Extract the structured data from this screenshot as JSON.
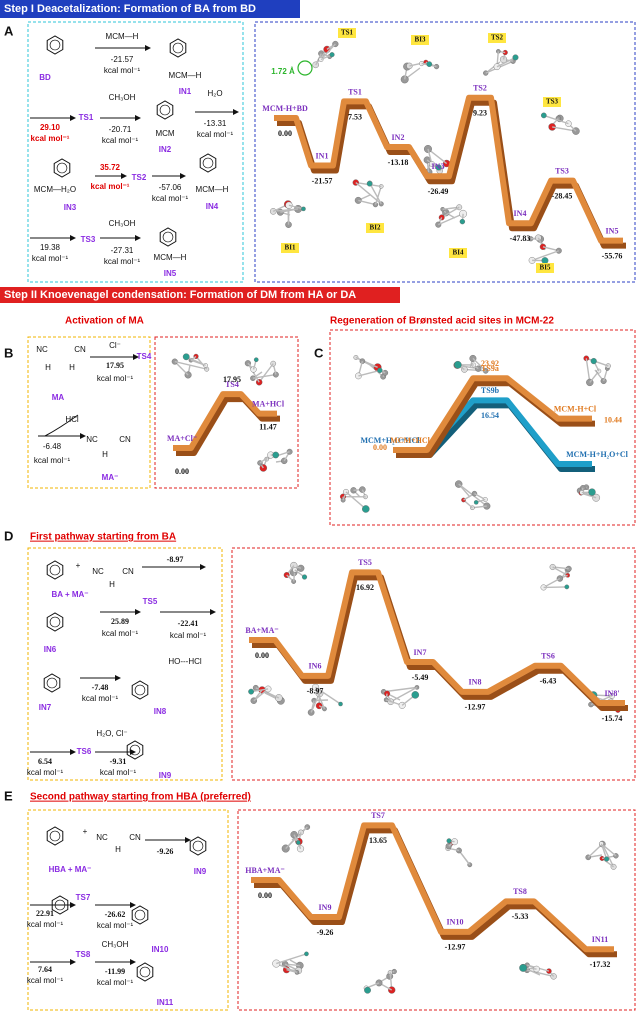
{
  "step1": {
    "header": "Step I  Deacetalization: Formation of BA from BD",
    "panel": "A",
    "scheme": [
      "BD",
      "MCM—H",
      "-21.57",
      "kcal mol⁻¹",
      "MCM—H",
      "IN1",
      "29.10",
      "kcal mol⁻¹",
      "TS1",
      "CH₃OH",
      "-20.71",
      "kcal mol⁻¹",
      "MCM",
      "IN2",
      "H₂O",
      "-13.31",
      "kcal mol⁻¹",
      "MCM—H₂O",
      "IN3",
      "35.72",
      "kcal mol⁻¹",
      "TS2",
      "-57.06",
      "kcal mol⁻¹",
      "MCM—H",
      "IN4",
      "19.38",
      "kcal mol⁻¹",
      "TS3",
      "CH₃OH",
      "-27.31",
      "kcal mol⁻¹",
      "MCM—H",
      "IN5"
    ],
    "profile": [
      {
        "label": "MCM-H+BD",
        "energy": "0.00"
      },
      {
        "label": "IN1",
        "energy": "-21.57"
      },
      {
        "label": "TS1",
        "energy": "7.53"
      },
      {
        "label": "IN2",
        "energy": "-13.18"
      },
      {
        "label": "IN3",
        "energy": "-26.49"
      },
      {
        "label": "TS2",
        "energy": "9.23"
      },
      {
        "label": "IN4",
        "energy": "-47.83"
      },
      {
        "label": "TS3",
        "energy": "-28.45"
      },
      {
        "label": "IN5",
        "energy": "-55.76"
      }
    ],
    "structure_tags": [
      "TS1",
      "BI3",
      "TS2",
      "TS3",
      "BI1",
      "BI2",
      "BI4",
      "BI5"
    ],
    "bond_length": "1.72 Å"
  },
  "step2": {
    "header": "Step II  Knoevenagel condensation: Formation of DM from HA or DA",
    "activation": {
      "title": "Activation of MA",
      "panel": "B",
      "scheme": [
        "NC",
        "CN",
        "H",
        "H",
        "Cl⁻",
        "17.95",
        "kcal mol⁻¹",
        "TS4",
        "MA",
        "HCl",
        "-6.48",
        "kcal mol⁻¹",
        "NC",
        "CN",
        "H",
        "MA⁻"
      ],
      "profile": [
        {
          "label": "MA+Cl⁻",
          "energy": "0.00"
        },
        {
          "label": "TS4",
          "energy": "17.95"
        },
        {
          "label": "MA+HCl",
          "energy": "11.47"
        }
      ]
    },
    "regeneration": {
      "title": "Regeneration of Brønsted acid sites in MCM-22",
      "panel": "C",
      "path_a": [
        {
          "label": "MCM+HCl",
          "energy": "0.00"
        },
        {
          "label": "TS9a",
          "energy": "23.92"
        },
        {
          "label": "MCM-H+Cl",
          "energy": "10.44"
        }
      ],
      "path_b": [
        {
          "label": "MCM+H₂O+HCl",
          "energy": null
        },
        {
          "label": "TS9b",
          "energy": "16.54"
        },
        {
          "label": "MCM-H+H₂O+Cl",
          "energy": null
        }
      ]
    },
    "first_pathway": {
      "title": "First pathway starting from BA",
      "panel": "D",
      "scheme": [
        "+",
        "NC",
        "CN",
        "H",
        "-8.97",
        "BA + MA⁻",
        "25.89",
        "kcal mol⁻¹",
        "TS5",
        "-22.41",
        "kcal mol⁻¹",
        "IN6",
        "-7.48",
        "kcal mol⁻¹",
        "HO---HCl",
        "IN7",
        "IN8",
        "H₂O, Cl⁻",
        "6.54",
        "kcal mol⁻¹",
        "TS6",
        "-9.31",
        "kcal mol⁻¹",
        "IN9"
      ],
      "profile": [
        {
          "label": "BA+MA⁻",
          "energy": "0.00"
        },
        {
          "label": "IN6",
          "energy": "-8.97"
        },
        {
          "label": "TS5",
          "energy": "16.92"
        },
        {
          "label": "IN7",
          "energy": "-5.49"
        },
        {
          "label": "IN8",
          "energy": "-12.97"
        },
        {
          "label": "TS6",
          "energy": "-6.43"
        },
        {
          "label": "IN8'",
          "energy": "-15.74"
        }
      ]
    },
    "second_pathway": {
      "title": "Second pathway starting from HBA (preferred)",
      "panel": "E",
      "scheme": [
        "+",
        "NC",
        "CN",
        "H",
        "-9.26",
        "HBA + MA⁻",
        "IN9",
        "22.91",
        "kcal mol⁻¹",
        "TS7",
        "-26.62",
        "kcal mol⁻¹",
        "IN10",
        "7.64",
        "kcal mol⁻¹",
        "TS8",
        "CH₃OH",
        "-11.99",
        "kcal mol⁻¹",
        "IN11"
      ],
      "profile": [
        {
          "label": "HBA+MA⁻",
          "energy": "0.00"
        },
        {
          "label": "IN9",
          "energy": "-9.26"
        },
        {
          "label": "TS7",
          "energy": "13.65"
        },
        {
          "label": "IN10",
          "energy": "-12.97"
        },
        {
          "label": "TS8",
          "energy": "-5.33"
        },
        {
          "label": "IN11",
          "energy": "-17.32"
        }
      ]
    }
  }
}
